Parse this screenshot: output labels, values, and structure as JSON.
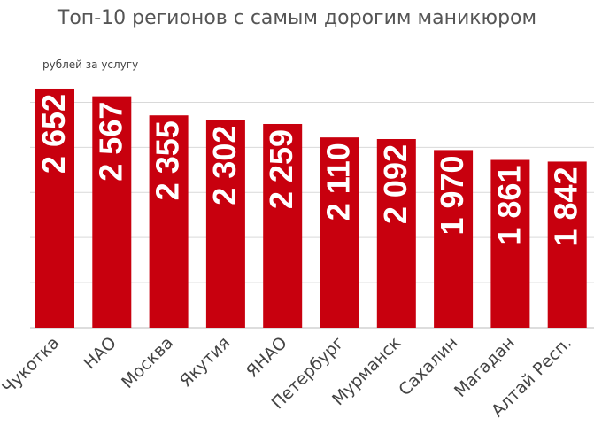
{
  "title": "Топ-10 регионов с самым дорогим маникюром",
  "colors": {
    "bar": "#c8000e",
    "grid": "#d9d9d9",
    "bar_label": "#ffffff",
    "axis_label": "#444444"
  },
  "chart_data": {
    "type": "bar",
    "title": "Топ-10 регионов с самым дорогим маникюром",
    "ylabel": "рублей за услугу",
    "xlabel": "",
    "ylim": [
      0,
      2750
    ],
    "grid": true,
    "categories": [
      "Чукотка",
      "НАО",
      "Москва",
      "Якутия",
      "ЯНАО",
      "Петербург",
      "Мурманск",
      "Сахалин",
      "Магадан",
      "Алтай Респ."
    ],
    "values": [
      2652,
      2567,
      2355,
      2302,
      2259,
      2110,
      2092,
      1970,
      1861,
      1842
    ],
    "value_labels": [
      "2 652",
      "2 567",
      "2 355",
      "2 302",
      "2 259",
      "2 110",
      "2 092",
      "1 970",
      "1 861",
      "1 842"
    ]
  }
}
